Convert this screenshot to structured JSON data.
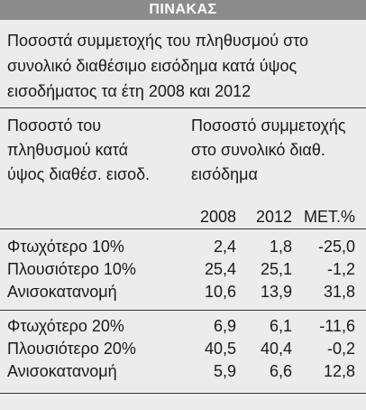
{
  "header": {
    "title": "ΠΙΝΑΚΑΣ"
  },
  "title": [
    "Ποσοστά συμμετοχής του πληθυσμού στο",
    "συνολικό διαθέσιμο εισόδημα κατά ύψος",
    "εισοδήματος τα έτη 2008 και 2012"
  ],
  "table": {
    "left_header": [
      "Ποσοστό του",
      "πληθυσμού κατά",
      "ύψος διαθέσ. εισοδ."
    ],
    "right_header": [
      "Ποσοστό συμμετοχής",
      "στο συνολικό διαθ.",
      "εισόδημα"
    ],
    "columns": [
      "2008",
      "2012",
      "ΜΕΤ.%"
    ],
    "rows": [
      [
        "Φτωχότερο 10%",
        "2,4",
        "1,8",
        "-25,0"
      ],
      [
        "Πλουσιότερο 10%",
        "25,4",
        "25,1",
        "-1,2"
      ],
      [
        "Ανισοκατανομή",
        "10,6",
        "13,9",
        "31,8"
      ],
      [
        "Φτωχότερο 20%",
        "6,9",
        "6,1",
        "-11,6"
      ],
      [
        "Πλουσιότερο 20%",
        "40,5",
        "40,4",
        "-0,2"
      ],
      [
        "Ανισοκατανομή",
        "5,9",
        "6,6",
        "12,8"
      ]
    ]
  }
}
